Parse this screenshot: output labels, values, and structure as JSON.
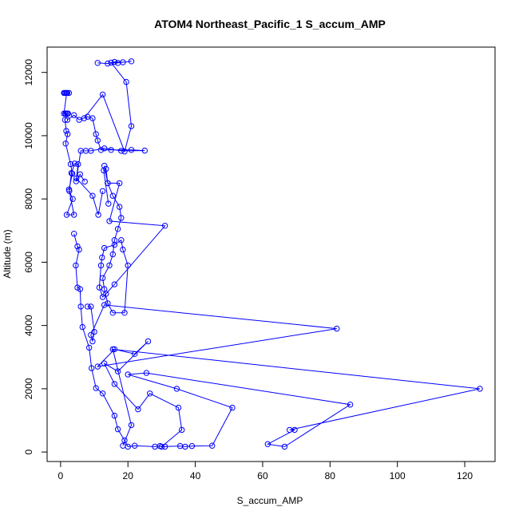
{
  "chart_data": {
    "type": "scatter",
    "title": "ATOM4 Northeast_Pacific_1 S_accum_AMP",
    "xlabel": "S_accum_AMP",
    "ylabel": "Altitude (m)",
    "xlim": [
      -4,
      129
    ],
    "ylim": [
      -300,
      12800
    ],
    "xticks": [
      0,
      20,
      40,
      60,
      80,
      100,
      120
    ],
    "yticks": [
      0,
      2000,
      4000,
      6000,
      8000,
      10000,
      12000
    ],
    "grid": false,
    "color": "#0000ff",
    "markers": "open-circle",
    "connected": true,
    "series": [
      {
        "points": [
          [
            1,
            11350
          ],
          [
            2,
            11350
          ],
          [
            1.5,
            11350
          ],
          [
            2.5,
            11350
          ],
          [
            1.2,
            11350
          ],
          [
            1.8,
            11350
          ],
          [
            1,
            10700
          ],
          [
            2,
            10700
          ],
          [
            1.5,
            10700
          ],
          [
            2.2,
            10700
          ],
          [
            1.4,
            10700
          ],
          [
            1.9,
            10700
          ],
          [
            1.3,
            10500
          ],
          [
            1.7,
            10150
          ],
          [
            2.1,
            10050
          ],
          [
            1.5,
            9750
          ],
          [
            3,
            9100
          ],
          [
            3.5,
            8800
          ],
          [
            2.5,
            8300
          ],
          [
            4,
            7500
          ],
          [
            1.8,
            7500
          ],
          [
            3.6,
            8000
          ],
          [
            2.6,
            8250
          ],
          [
            3.2,
            8820
          ],
          [
            4.2,
            9120
          ],
          [
            5.2,
            9100
          ],
          [
            4.6,
            8560
          ],
          [
            5.8,
            8780
          ],
          [
            7.2,
            8550
          ]
        ]
      },
      {
        "points": [
          [
            2,
            10500
          ],
          [
            4,
            10650
          ],
          [
            5.5,
            10500
          ],
          [
            8,
            10600
          ],
          [
            9.5,
            10550
          ],
          [
            10.5,
            10050
          ],
          [
            11,
            9850
          ],
          [
            12,
            9550
          ],
          [
            15,
            9550
          ],
          [
            21,
            9550
          ],
          [
            25,
            9530
          ],
          [
            18,
            9520
          ],
          [
            13,
            9600
          ],
          [
            9,
            9520
          ],
          [
            7.5,
            9520
          ],
          [
            6,
            9520
          ],
          [
            4.7,
            8650
          ],
          [
            9.5,
            8100
          ],
          [
            11.2,
            7500
          ],
          [
            12.5,
            8250
          ]
        ]
      },
      {
        "points": [
          [
            11,
            12300
          ],
          [
            14,
            12280
          ],
          [
            16,
            12330
          ],
          [
            18.5,
            12320
          ],
          [
            21,
            12350
          ],
          [
            17,
            12300
          ],
          [
            15,
            12310
          ],
          [
            19.5,
            11700
          ],
          [
            21,
            10300
          ],
          [
            19,
            9500
          ],
          [
            12.5,
            11300
          ],
          [
            7,
            10550
          ]
        ]
      },
      {
        "points": [
          [
            4,
            6900
          ],
          [
            5,
            6500
          ],
          [
            5.5,
            6400
          ],
          [
            4.5,
            5900
          ],
          [
            5,
            5200
          ],
          [
            5.8,
            5150
          ],
          [
            6,
            4600
          ],
          [
            6.5,
            3950
          ],
          [
            8.5,
            3300
          ],
          [
            9.2,
            2650
          ],
          [
            10.5,
            2020
          ],
          [
            12.5,
            1850
          ],
          [
            16,
            1150
          ],
          [
            17,
            720
          ],
          [
            19,
            370
          ],
          [
            20,
            170
          ],
          [
            22,
            200
          ],
          [
            28,
            170
          ],
          [
            29.5,
            190
          ],
          [
            31,
            170
          ]
        ]
      },
      {
        "points": [
          [
            13,
            9050
          ],
          [
            14,
            8500
          ],
          [
            15.5,
            8100
          ],
          [
            17.5,
            7750
          ],
          [
            18,
            7400
          ],
          [
            17,
            7050
          ],
          [
            16,
            6700
          ],
          [
            15.5,
            6250
          ],
          [
            14.5,
            5900
          ],
          [
            12.5,
            5500
          ],
          [
            13,
            5150
          ],
          [
            14,
            4700
          ],
          [
            15.5,
            4400
          ],
          [
            19,
            4400
          ],
          [
            20,
            5900
          ],
          [
            18.5,
            6400
          ],
          [
            18,
            6700
          ],
          [
            16,
            6550
          ],
          [
            13,
            6450
          ],
          [
            12.3,
            6150
          ],
          [
            12,
            5900
          ],
          [
            11.5,
            5200
          ],
          [
            12.5,
            4900
          ],
          [
            13.5,
            5000
          ],
          [
            16,
            5300
          ],
          [
            31,
            7150
          ],
          [
            14.5,
            7300
          ],
          [
            17.5,
            8500
          ],
          [
            14,
            8500
          ],
          [
            13.5,
            8950
          ],
          [
            12.8,
            8900
          ],
          [
            14.2,
            7850
          ]
        ]
      },
      {
        "points": [
          [
            8,
            4600
          ],
          [
            9,
            4600
          ],
          [
            10,
            3800
          ],
          [
            9.5,
            3500
          ],
          [
            9,
            3700
          ],
          [
            13,
            4650
          ],
          [
            82,
            3900
          ],
          [
            11,
            2700
          ],
          [
            16,
            3250
          ],
          [
            22,
            3100
          ],
          [
            26,
            3500
          ],
          [
            17,
            2550
          ],
          [
            13,
            2800
          ],
          [
            16,
            2150
          ],
          [
            23,
            1350
          ],
          [
            26.5,
            1850
          ],
          [
            35,
            1400
          ],
          [
            36,
            700
          ],
          [
            30,
            170
          ],
          [
            35.5,
            190
          ],
          [
            37,
            170
          ],
          [
            39,
            190
          ],
          [
            45,
            200
          ],
          [
            51,
            1400
          ],
          [
            34.5,
            2000
          ],
          [
            20,
            2450
          ],
          [
            25.5,
            2500
          ],
          [
            86,
            1500
          ],
          [
            66.5,
            170
          ],
          [
            61.5,
            250
          ],
          [
            69.5,
            700
          ],
          [
            68,
            700
          ],
          [
            124.5,
            2000
          ],
          [
            15.5,
            3250
          ],
          [
            21,
            850
          ],
          [
            18.5,
            200
          ]
        ]
      }
    ]
  }
}
